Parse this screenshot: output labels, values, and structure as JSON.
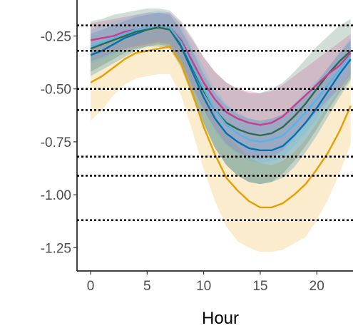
{
  "chart_data": {
    "type": "line",
    "title": "",
    "xlabel": "Hour",
    "ylabel": "",
    "xlim": [
      -1.2,
      23.2
    ],
    "ylim": [
      -1.36,
      -0.08
    ],
    "x_ticks": [
      0,
      5,
      10,
      15,
      20
    ],
    "x_tick_labels": [
      "0",
      "5",
      "10",
      "15",
      "20"
    ],
    "y_ticks": [
      -0.25,
      -0.5,
      -0.75,
      -1.0,
      -1.25
    ],
    "y_tick_labels": [
      "-0.25",
      "-0.50",
      "-0.75",
      "-1.00",
      "-1.25"
    ],
    "grid": false,
    "legend": "none",
    "hlines": [
      -0.2,
      -0.32,
      -0.5,
      -0.6,
      -0.82,
      -0.91,
      -1.12
    ],
    "hline_color": "#000000",
    "x": [
      0,
      1,
      2,
      3,
      4,
      5,
      6,
      7,
      8,
      9,
      10,
      11,
      12,
      13,
      14,
      15,
      16,
      17,
      18,
      19,
      20,
      21,
      22,
      23
    ],
    "series": [
      {
        "color": "#e69f00",
        "values": [
          -0.47,
          -0.44,
          -0.4,
          -0.36,
          -0.33,
          -0.32,
          -0.31,
          -0.3,
          -0.38,
          -0.52,
          -0.68,
          -0.81,
          -0.92,
          -0.98,
          -1.03,
          -1.06,
          -1.06,
          -1.04,
          -1.0,
          -0.95,
          -0.88,
          -0.8,
          -0.7,
          -0.58
        ],
        "lower": [
          -0.65,
          -0.6,
          -0.53,
          -0.48,
          -0.45,
          -0.44,
          -0.43,
          -0.43,
          -0.53,
          -0.7,
          -0.88,
          -1.03,
          -1.15,
          -1.22,
          -1.25,
          -1.27,
          -1.27,
          -1.26,
          -1.23,
          -1.2,
          -1.12,
          -1.02,
          -0.9,
          -0.76
        ],
        "upper": [
          -0.3,
          -0.28,
          -0.26,
          -0.24,
          -0.22,
          -0.21,
          -0.2,
          -0.2,
          -0.25,
          -0.36,
          -0.5,
          -0.62,
          -0.71,
          -0.77,
          -0.82,
          -0.85,
          -0.86,
          -0.84,
          -0.8,
          -0.74,
          -0.66,
          -0.58,
          -0.5,
          -0.42
        ]
      },
      {
        "color": "#0072b2",
        "values": [
          -0.34,
          -0.32,
          -0.29,
          -0.26,
          -0.24,
          -0.22,
          -0.21,
          -0.22,
          -0.3,
          -0.42,
          -0.54,
          -0.64,
          -0.71,
          -0.75,
          -0.78,
          -0.79,
          -0.79,
          -0.77,
          -0.72,
          -0.66,
          -0.59,
          -0.51,
          -0.43,
          -0.36
        ],
        "lower": [
          -0.44,
          -0.41,
          -0.38,
          -0.35,
          -0.32,
          -0.3,
          -0.29,
          -0.3,
          -0.39,
          -0.53,
          -0.66,
          -0.78,
          -0.86,
          -0.91,
          -0.94,
          -0.95,
          -0.94,
          -0.92,
          -0.87,
          -0.8,
          -0.72,
          -0.63,
          -0.54,
          -0.46
        ],
        "upper": [
          -0.24,
          -0.22,
          -0.2,
          -0.18,
          -0.16,
          -0.15,
          -0.14,
          -0.15,
          -0.22,
          -0.32,
          -0.43,
          -0.52,
          -0.58,
          -0.62,
          -0.64,
          -0.65,
          -0.64,
          -0.62,
          -0.58,
          -0.53,
          -0.47,
          -0.4,
          -0.33,
          -0.27
        ]
      },
      {
        "color": "#2e6b4a",
        "values": [
          -0.31,
          -0.29,
          -0.27,
          -0.25,
          -0.23,
          -0.22,
          -0.21,
          -0.22,
          -0.29,
          -0.4,
          -0.51,
          -0.6,
          -0.66,
          -0.69,
          -0.71,
          -0.72,
          -0.71,
          -0.68,
          -0.63,
          -0.57,
          -0.5,
          -0.43,
          -0.37,
          -0.32
        ],
        "lower": [
          -0.42,
          -0.39,
          -0.36,
          -0.33,
          -0.31,
          -0.3,
          -0.3,
          -0.31,
          -0.4,
          -0.54,
          -0.67,
          -0.78,
          -0.86,
          -0.91,
          -0.94,
          -0.95,
          -0.94,
          -0.9,
          -0.84,
          -0.77,
          -0.69,
          -0.6,
          -0.52,
          -0.45
        ],
        "upper": [
          -0.18,
          -0.17,
          -0.15,
          -0.14,
          -0.13,
          -0.12,
          -0.12,
          -0.13,
          -0.18,
          -0.26,
          -0.35,
          -0.42,
          -0.47,
          -0.5,
          -0.52,
          -0.52,
          -0.5,
          -0.47,
          -0.42,
          -0.36,
          -0.3,
          -0.25,
          -0.2,
          -0.17
        ]
      },
      {
        "color": "#cc3c8a",
        "values": [
          -0.27,
          -0.26,
          -0.25,
          -0.23,
          -0.22,
          -0.21,
          -0.2,
          -0.21,
          -0.27,
          -0.37,
          -0.47,
          -0.55,
          -0.61,
          -0.64,
          -0.66,
          -0.67,
          -0.66,
          -0.63,
          -0.58,
          -0.53,
          -0.48,
          -0.43,
          -0.39,
          -0.33
        ],
        "lower": [
          -0.37,
          -0.35,
          -0.33,
          -0.31,
          -0.3,
          -0.29,
          -0.28,
          -0.29,
          -0.37,
          -0.49,
          -0.6,
          -0.69,
          -0.76,
          -0.8,
          -0.82,
          -0.83,
          -0.82,
          -0.79,
          -0.73,
          -0.67,
          -0.61,
          -0.55,
          -0.5,
          -0.43
        ],
        "upper": [
          -0.19,
          -0.18,
          -0.17,
          -0.16,
          -0.15,
          -0.14,
          -0.14,
          -0.14,
          -0.19,
          -0.27,
          -0.35,
          -0.42,
          -0.47,
          -0.5,
          -0.51,
          -0.52,
          -0.51,
          -0.48,
          -0.44,
          -0.4,
          -0.36,
          -0.32,
          -0.28,
          -0.24
        ]
      },
      {
        "color": "#56b4e9",
        "values": [
          -0.3,
          -0.28,
          -0.26,
          -0.24,
          -0.22,
          -0.21,
          -0.2,
          -0.21,
          -0.28,
          -0.39,
          -0.5,
          -0.6,
          -0.67,
          -0.71,
          -0.74,
          -0.75,
          -0.74,
          -0.72,
          -0.67,
          -0.61,
          -0.55,
          -0.48,
          -0.41,
          -0.34
        ],
        "lower": [
          -0.38,
          -0.36,
          -0.34,
          -0.31,
          -0.29,
          -0.28,
          -0.27,
          -0.28,
          -0.36,
          -0.48,
          -0.6,
          -0.7,
          -0.77,
          -0.81,
          -0.84,
          -0.85,
          -0.84,
          -0.82,
          -0.77,
          -0.71,
          -0.64,
          -0.56,
          -0.49,
          -0.42
        ],
        "upper": [
          -0.22,
          -0.2,
          -0.18,
          -0.17,
          -0.15,
          -0.14,
          -0.13,
          -0.14,
          -0.2,
          -0.3,
          -0.4,
          -0.5,
          -0.57,
          -0.61,
          -0.64,
          -0.65,
          -0.64,
          -0.62,
          -0.57,
          -0.51,
          -0.46,
          -0.4,
          -0.33,
          -0.26
        ]
      }
    ]
  }
}
